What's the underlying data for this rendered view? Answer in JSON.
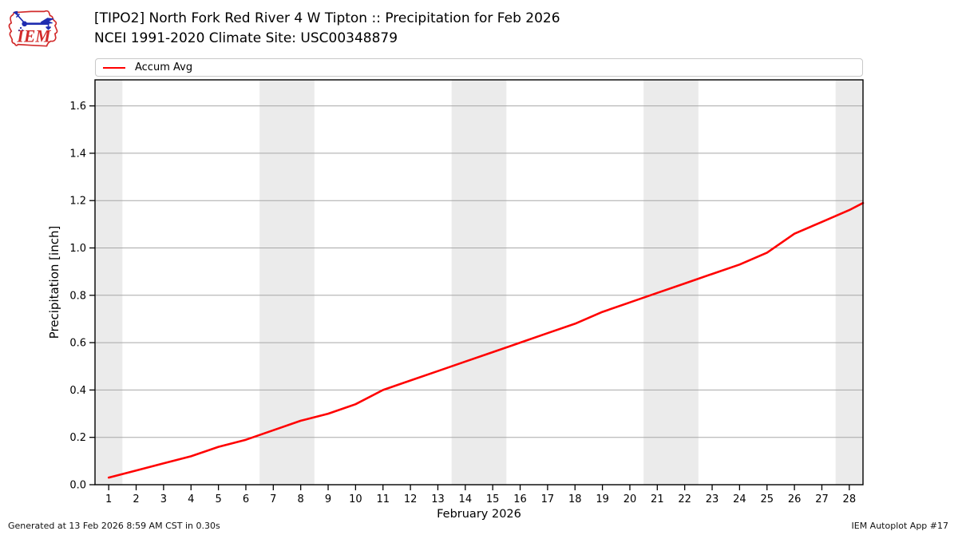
{
  "header": {
    "title_line1": "[TIPO2] North Fork Red River 4 W Tipton :: Precipitation for Feb 2026",
    "title_line2": "NCEI 1991-2020 Climate Site: USC00348879"
  },
  "logo": {
    "text": "IEM",
    "red": "#d22b2b",
    "blue": "#1f2db0"
  },
  "legend": {
    "items": [
      {
        "label": "Accum Avg",
        "color": "#ff0000"
      }
    ]
  },
  "footer": {
    "generated": "Generated at 13 Feb 2026 8:59 AM CST in 0.30s",
    "app": "IEM Autoplot App #17"
  },
  "colors": {
    "line": "#ff0000",
    "weekend_band": "#ebebeb",
    "grid": "#a8a8a8",
    "spine": "#000000",
    "text": "#000000"
  },
  "chart_data": {
    "type": "line",
    "title": "[TIPO2] North Fork Red River 4 W Tipton :: Precipitation for Feb 2026",
    "subtitle": "NCEI 1991-2020 Climate Site: USC00348879",
    "xlabel": "February 2026",
    "ylabel": "Precipitation [inch]",
    "xlim": [
      0.5,
      28.5
    ],
    "ylim": [
      0,
      1.71
    ],
    "xticks": [
      1,
      2,
      3,
      4,
      5,
      6,
      7,
      8,
      9,
      10,
      11,
      12,
      13,
      14,
      15,
      16,
      17,
      18,
      19,
      20,
      21,
      22,
      23,
      24,
      25,
      26,
      27,
      28
    ],
    "yticks": [
      0.0,
      0.2,
      0.4,
      0.6,
      0.8,
      1.0,
      1.2,
      1.4,
      1.6
    ],
    "grid": "horizontal",
    "legend_position": "top",
    "weekend_bands": [
      [
        0.5,
        1.5
      ],
      [
        6.5,
        8.5
      ],
      [
        13.5,
        15.5
      ],
      [
        20.5,
        22.5
      ],
      [
        27.5,
        28.5
      ]
    ],
    "series": [
      {
        "name": "Accum Avg",
        "color": "#ff0000",
        "x": [
          1,
          2,
          3,
          4,
          5,
          6,
          7,
          8,
          9,
          10,
          11,
          12,
          13,
          14,
          15,
          16,
          17,
          18,
          19,
          20,
          21,
          22,
          23,
          24,
          25,
          26,
          27,
          28,
          28.5
        ],
        "values": [
          0.03,
          0.06,
          0.09,
          0.12,
          0.16,
          0.19,
          0.23,
          0.27,
          0.3,
          0.34,
          0.4,
          0.44,
          0.48,
          0.52,
          0.56,
          0.6,
          0.64,
          0.68,
          0.73,
          0.77,
          0.81,
          0.85,
          0.89,
          0.93,
          0.98,
          1.06,
          1.11,
          1.16,
          1.19
        ]
      }
    ]
  }
}
